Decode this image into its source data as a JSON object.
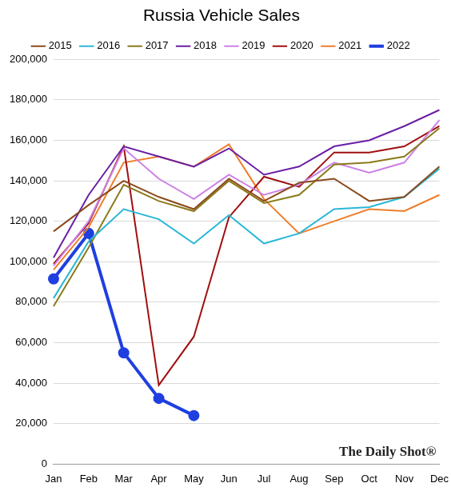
{
  "chart_data": {
    "type": "line",
    "title": "Russia Vehicle Sales",
    "annotations": [
      "The Daily Shot®"
    ],
    "categories": [
      "Jan",
      "Feb",
      "Mar",
      "Apr",
      "May",
      "Jun",
      "Jul",
      "Aug",
      "Sep",
      "Oct",
      "Nov",
      "Dec"
    ],
    "series": [
      {
        "name": "2015",
        "color": "#8c4a1c",
        "values": [
          115000,
          128000,
          140000,
          132000,
          126000,
          141000,
          130000,
          139000,
          141000,
          130000,
          132000,
          147000
        ]
      },
      {
        "name": "2016",
        "color": "#2bb7d8",
        "values": [
          82000,
          110000,
          126000,
          121000,
          109000,
          123000,
          109000,
          114000,
          126000,
          127000,
          132000,
          146000
        ]
      },
      {
        "name": "2017",
        "color": "#8b7a1a",
        "values": [
          78000,
          107000,
          138000,
          130000,
          125000,
          140000,
          129000,
          133000,
          148000,
          149000,
          152000,
          166000
        ]
      },
      {
        "name": "2018",
        "color": "#6a1fa5",
        "values": [
          102000,
          133000,
          157000,
          152000,
          147000,
          156000,
          143000,
          147000,
          157000,
          160000,
          167000,
          175000
        ]
      },
      {
        "name": "2019",
        "color": "#cc80e6",
        "values": [
          98000,
          120000,
          156000,
          141000,
          131000,
          143000,
          133000,
          138000,
          149000,
          144000,
          149000,
          170000
        ]
      },
      {
        "name": "2020",
        "color": "#a01010",
        "values": [
          99000,
          119000,
          157000,
          39000,
          63000,
          122000,
          142000,
          137000,
          154000,
          154000,
          157000,
          167000
        ]
      },
      {
        "name": "2021",
        "color": "#f07d2a",
        "values": [
          96000,
          117000,
          149000,
          152000,
          147000,
          158000,
          131000,
          114000,
          120000,
          126000,
          125000,
          133000
        ]
      },
      {
        "name": "2022",
        "color": "#1f3fe0",
        "marker": "circle",
        "values": [
          91500,
          114000,
          55000,
          32500,
          24000,
          null,
          null,
          null,
          null,
          null,
          null,
          null
        ]
      }
    ],
    "ylim": [
      0,
      200000
    ],
    "yticks": [
      0,
      {
        "value": 20000,
        "label": "20,000"
      },
      {
        "value": 40000,
        "label": "40,000"
      },
      {
        "value": 60000,
        "label": "60,000"
      },
      {
        "value": 80000,
        "label": "80,000"
      },
      {
        "value": 100000,
        "label": "100,000"
      },
      {
        "value": 120000,
        "label": "120,000"
      },
      {
        "value": 140000,
        "label": "140,000"
      },
      {
        "value": 160000,
        "label": "160,000"
      },
      {
        "value": 180000,
        "label": "180,000"
      },
      {
        "value": 200000,
        "label": "200,000"
      }
    ],
    "grid": true,
    "legend": "top"
  }
}
